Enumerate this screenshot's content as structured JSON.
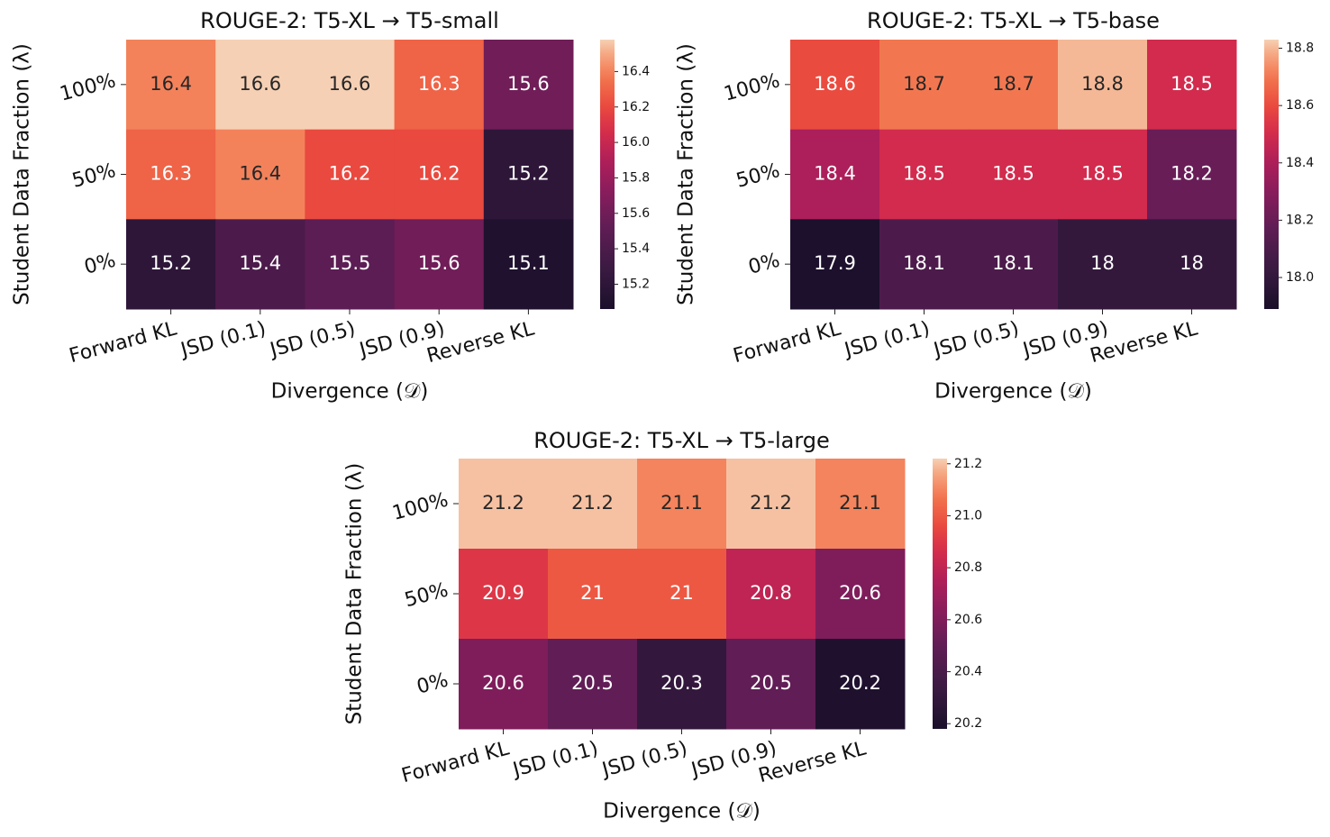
{
  "chart_data": [
    {
      "type": "heatmap",
      "title": "ROUGE-2: T5-XL → T5-small",
      "xlabel": "Divergence (𝒟)",
      "ylabel": "Student Data Fraction (λ)",
      "x": [
        "Forward KL",
        "JSD (0.1)",
        "JSD (0.5)",
        "JSD (0.9)",
        "Reverse KL"
      ],
      "y": [
        "100%",
        "50%",
        "0%"
      ],
      "values": [
        [
          16.4,
          16.6,
          16.6,
          16.3,
          15.6
        ],
        [
          16.3,
          16.4,
          16.2,
          16.2,
          15.2
        ],
        [
          15.2,
          15.4,
          15.5,
          15.6,
          15.1
        ]
      ],
      "colormap": "rocket",
      "zlim": [
        15.06,
        16.58
      ],
      "zticks": [
        15.2,
        15.4,
        15.6,
        15.8,
        {
          "value": 16,
          "label": "16.0"
        },
        16.2,
        16.4
      ]
    },
    {
      "type": "heatmap",
      "title": "ROUGE-2: T5-XL → T5-base",
      "xlabel": "Divergence (𝒟)",
      "ylabel": "Student Data Fraction (λ)",
      "x": [
        "Forward KL",
        "JSD (0.1)",
        "JSD (0.5)",
        "JSD (0.9)",
        "Reverse KL"
      ],
      "y": [
        "100%",
        "50%",
        "0%"
      ],
      "values": [
        [
          18.6,
          18.7,
          18.7,
          18.8,
          18.5
        ],
        [
          18.4,
          18.5,
          18.5,
          18.5,
          18.2
        ],
        [
          17.9,
          18.1,
          18.1,
          18,
          18
        ]
      ],
      "colormap": "rocket",
      "zlim": [
        17.89,
        18.83
      ],
      "zticks": [
        {
          "value": 18,
          "label": "18.0"
        },
        18.2,
        18.4,
        18.6,
        18.8
      ]
    },
    {
      "type": "heatmap",
      "title": "ROUGE-2: T5-XL → T5-large",
      "xlabel": "Divergence (𝒟)",
      "ylabel": "Student Data Fraction (λ)",
      "x": [
        "Forward KL",
        "JSD (0.1)",
        "JSD (0.5)",
        "JSD (0.9)",
        "Reverse KL"
      ],
      "y": [
        "100%",
        "50%",
        "0%"
      ],
      "values": [
        [
          21.2,
          21.2,
          21.1,
          21.2,
          21.1
        ],
        [
          20.9,
          21,
          21,
          20.8,
          20.6
        ],
        [
          20.6,
          20.5,
          20.3,
          20.5,
          20.2
        ]
      ],
      "colormap": "rocket",
      "zlim": [
        20.18,
        21.22
      ],
      "zticks": [
        20.2,
        20.4,
        20.6,
        20.8,
        {
          "value": 21,
          "label": "21.0"
        },
        21.2
      ]
    }
  ]
}
